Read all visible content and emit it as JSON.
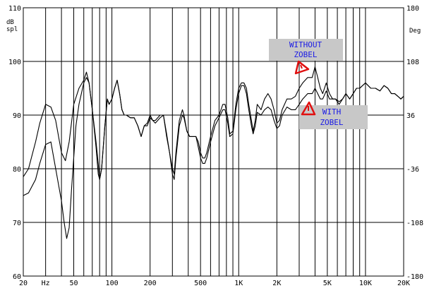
{
  "chart_data": {
    "type": "line",
    "title": "",
    "xscale": "log",
    "xlim": [
      20,
      20000
    ],
    "ylim": [
      60,
      110
    ],
    "y2lim": [
      -180,
      180
    ],
    "grid": true,
    "x_ticks": [
      {
        "value": 20,
        "label": "20"
      },
      {
        "value": 30,
        "label": "Hz"
      },
      {
        "value": 50,
        "label": "50"
      },
      {
        "value": 100,
        "label": "100"
      },
      {
        "value": 200,
        "label": "200"
      },
      {
        "value": 500,
        "label": "500"
      },
      {
        "value": 1000,
        "label": "1K"
      },
      {
        "value": 2000,
        "label": "2K"
      },
      {
        "value": 5000,
        "label": "5K"
      },
      {
        "value": 10000,
        "label": "10K"
      },
      {
        "value": 20000,
        "label": "20K"
      }
    ],
    "y_ticks": [
      {
        "value": 110,
        "label": "110"
      },
      {
        "value": 100,
        "label": "100"
      },
      {
        "value": 90,
        "label": "90"
      },
      {
        "value": 80,
        "label": "80"
      },
      {
        "value": 70,
        "label": "70"
      },
      {
        "value": 60,
        "label": "60"
      }
    ],
    "y2_ticks": [
      {
        "value": 180,
        "label": "180"
      },
      {
        "value": 108,
        "label": "108"
      },
      {
        "value": 36,
        "label": "36"
      },
      {
        "value": -36,
        "label": "-36"
      },
      {
        "value": -108,
        "label": "-108"
      },
      {
        "value": -180,
        "label": "-180"
      }
    ],
    "ylabel": "dB\nspl",
    "y2label": "Deg",
    "series": [
      {
        "name": "WITHOUT ZOBEL",
        "points": [
          [
            20,
            78.5
          ],
          [
            22,
            80
          ],
          [
            25,
            85
          ],
          [
            27,
            88.5
          ],
          [
            30,
            92
          ],
          [
            33,
            91.5
          ],
          [
            36,
            89
          ],
          [
            40,
            83
          ],
          [
            43,
            81.5
          ],
          [
            46,
            85
          ],
          [
            50,
            92
          ],
          [
            55,
            95
          ],
          [
            60,
            96.5
          ],
          [
            63,
            98
          ],
          [
            66,
            96
          ],
          [
            70,
            91
          ],
          [
            75,
            84
          ],
          [
            78,
            79
          ],
          [
            80,
            78
          ],
          [
            83,
            80
          ],
          [
            88,
            88
          ],
          [
            92,
            93
          ],
          [
            95,
            92
          ],
          [
            100,
            93
          ],
          [
            105,
            95
          ],
          [
            110,
            96.5
          ],
          [
            115,
            94
          ],
          [
            120,
            91
          ],
          [
            125,
            90
          ],
          [
            130,
            90
          ],
          [
            140,
            89.5
          ],
          [
            150,
            89.5
          ],
          [
            160,
            88
          ],
          [
            170,
            86
          ],
          [
            180,
            88
          ],
          [
            190,
            88.5
          ],
          [
            200,
            90
          ],
          [
            210,
            89
          ],
          [
            220,
            89
          ],
          [
            240,
            90
          ],
          [
            255,
            90
          ],
          [
            270,
            86.5
          ],
          [
            285,
            83
          ],
          [
            300,
            80
          ],
          [
            310,
            79
          ],
          [
            320,
            83
          ],
          [
            340,
            89
          ],
          [
            360,
            91
          ],
          [
            370,
            90
          ],
          [
            390,
            87
          ],
          [
            410,
            86
          ],
          [
            430,
            86
          ],
          [
            460,
            86
          ],
          [
            480,
            85
          ],
          [
            500,
            83
          ],
          [
            520,
            82
          ],
          [
            540,
            82
          ],
          [
            560,
            83
          ],
          [
            600,
            86
          ],
          [
            650,
            89
          ],
          [
            700,
            90
          ],
          [
            750,
            92
          ],
          [
            780,
            92
          ],
          [
            820,
            89.5
          ],
          [
            850,
            86.5
          ],
          [
            900,
            87
          ],
          [
            950,
            92
          ],
          [
            1000,
            95
          ],
          [
            1050,
            96
          ],
          [
            1100,
            96
          ],
          [
            1150,
            95
          ],
          [
            1200,
            92
          ],
          [
            1260,
            89
          ],
          [
            1300,
            87
          ],
          [
            1350,
            89
          ],
          [
            1400,
            92
          ],
          [
            1500,
            91
          ],
          [
            1600,
            93
          ],
          [
            1700,
            94
          ],
          [
            1800,
            93
          ],
          [
            1900,
            91
          ],
          [
            2000,
            88.5
          ],
          [
            2100,
            89
          ],
          [
            2200,
            91
          ],
          [
            2400,
            93
          ],
          [
            2600,
            93
          ],
          [
            2800,
            93.5
          ],
          [
            3000,
            95
          ],
          [
            3200,
            96
          ],
          [
            3500,
            97
          ],
          [
            3800,
            97
          ],
          [
            4000,
            99
          ],
          [
            4200,
            97
          ],
          [
            4400,
            95
          ],
          [
            4600,
            94
          ],
          [
            4900,
            96
          ],
          [
            5200,
            94
          ],
          [
            5500,
            93
          ],
          [
            5800,
            93
          ],
          [
            6200,
            92
          ],
          [
            6600,
            93
          ],
          [
            7000,
            94
          ],
          [
            7500,
            93
          ],
          [
            8000,
            94
          ],
          [
            8500,
            95
          ],
          [
            9000,
            95
          ],
          [
            10000,
            96
          ],
          [
            11000,
            95
          ],
          [
            12000,
            95
          ],
          [
            13000,
            94.5
          ],
          [
            14000,
            95.5
          ],
          [
            15000,
            95
          ],
          [
            16000,
            94
          ],
          [
            17000,
            94
          ],
          [
            18000,
            93.5
          ],
          [
            19000,
            93
          ],
          [
            20000,
            93.5
          ]
        ]
      },
      {
        "name": "WITH ZOBEL",
        "points": [
          [
            20,
            75
          ],
          [
            22,
            75.5
          ],
          [
            25,
            78
          ],
          [
            27,
            81
          ],
          [
            30,
            84.5
          ],
          [
            33,
            85
          ],
          [
            36,
            80
          ],
          [
            40,
            74
          ],
          [
            42,
            70
          ],
          [
            44,
            67
          ],
          [
            46,
            69
          ],
          [
            48,
            76
          ],
          [
            52,
            88
          ],
          [
            55,
            92
          ],
          [
            60,
            96
          ],
          [
            63,
            97
          ],
          [
            66,
            96
          ],
          [
            70,
            91
          ],
          [
            75,
            85
          ],
          [
            78,
            81
          ],
          [
            80,
            78
          ],
          [
            83,
            80
          ],
          [
            88,
            88
          ],
          [
            92,
            93
          ],
          [
            95,
            92
          ],
          [
            100,
            93
          ],
          [
            105,
            95
          ],
          [
            110,
            96.5
          ],
          [
            115,
            94
          ],
          [
            120,
            91
          ],
          [
            125,
            90
          ],
          [
            130,
            90
          ],
          [
            140,
            89.5
          ],
          [
            150,
            89.5
          ],
          [
            160,
            88
          ],
          [
            170,
            86
          ],
          [
            180,
            88
          ],
          [
            190,
            88
          ],
          [
            200,
            89.5
          ],
          [
            210,
            89
          ],
          [
            220,
            88.5
          ],
          [
            240,
            89.5
          ],
          [
            255,
            90
          ],
          [
            270,
            86
          ],
          [
            285,
            83
          ],
          [
            300,
            79
          ],
          [
            310,
            78
          ],
          [
            320,
            82
          ],
          [
            340,
            88
          ],
          [
            360,
            90
          ],
          [
            370,
            89.5
          ],
          [
            390,
            87
          ],
          [
            410,
            86
          ],
          [
            430,
            86
          ],
          [
            460,
            86
          ],
          [
            480,
            84
          ],
          [
            500,
            82
          ],
          [
            520,
            81
          ],
          [
            540,
            81
          ],
          [
            560,
            82
          ],
          [
            600,
            85
          ],
          [
            650,
            88
          ],
          [
            700,
            89.5
          ],
          [
            750,
            91
          ],
          [
            780,
            91
          ],
          [
            820,
            88.5
          ],
          [
            850,
            86
          ],
          [
            900,
            86.5
          ],
          [
            950,
            91
          ],
          [
            1000,
            94
          ],
          [
            1050,
            95.5
          ],
          [
            1100,
            95.5
          ],
          [
            1150,
            94
          ],
          [
            1200,
            91
          ],
          [
            1260,
            88
          ],
          [
            1300,
            86.5
          ],
          [
            1350,
            88
          ],
          [
            1400,
            90.5
          ],
          [
            1500,
            90
          ],
          [
            1600,
            91
          ],
          [
            1700,
            91.5
          ],
          [
            1800,
            91
          ],
          [
            1900,
            89
          ],
          [
            2000,
            87.5
          ],
          [
            2100,
            88
          ],
          [
            2200,
            90
          ],
          [
            2400,
            91.5
          ],
          [
            2600,
            91
          ],
          [
            2800,
            91
          ],
          [
            3000,
            92
          ],
          [
            3200,
            93
          ],
          [
            3500,
            94
          ],
          [
            3800,
            94
          ],
          [
            4000,
            95
          ],
          [
            4200,
            94
          ],
          [
            4400,
            93
          ],
          [
            4600,
            93
          ],
          [
            4900,
            94.5
          ],
          [
            5200,
            93
          ],
          [
            5500,
            93
          ],
          [
            5800,
            93
          ],
          [
            6200,
            92.5
          ],
          [
            6600,
            93
          ],
          [
            7000,
            94
          ],
          [
            7500,
            93
          ],
          [
            8000,
            94
          ],
          [
            8500,
            95
          ],
          [
            9000,
            95
          ],
          [
            10000,
            96
          ],
          [
            11000,
            95
          ],
          [
            12000,
            95
          ],
          [
            13000,
            94.5
          ],
          [
            14000,
            95.5
          ],
          [
            15000,
            95
          ],
          [
            16000,
            94
          ],
          [
            17000,
            94
          ],
          [
            18000,
            93.5
          ],
          [
            19000,
            93
          ],
          [
            20000,
            93.5
          ]
        ]
      }
    ],
    "annotations": [
      {
        "text": [
          "WITHOUT",
          "ZOBEL"
        ],
        "series": "WITHOUT ZOBEL",
        "box_color": "#c8c8c8",
        "text_color": "#1a1ae6"
      },
      {
        "text": [
          "WITH",
          "ZOBEL"
        ],
        "series": "WITH ZOBEL",
        "box_color": "#c8c8c8",
        "text_color": "#1a1ae6"
      }
    ],
    "colors": {
      "line": "#000000",
      "grid": "#000000",
      "marker": "#e01010",
      "background": "#ffffff"
    }
  }
}
